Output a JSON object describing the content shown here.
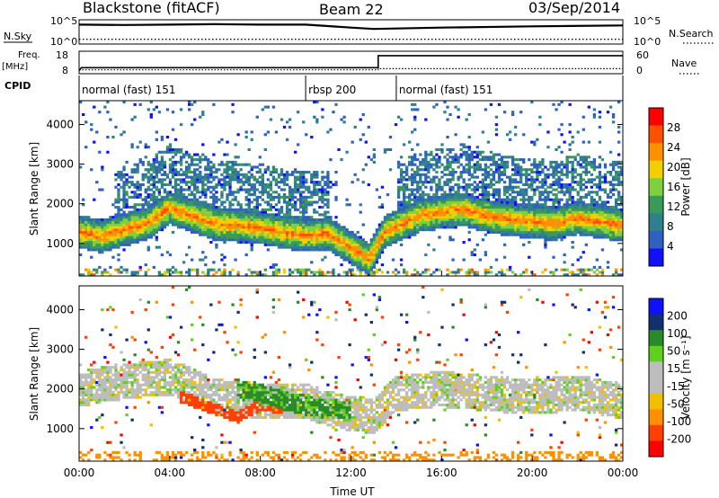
{
  "header": {
    "station": "Blackstone (fitACF)",
    "beam": "Beam 22",
    "date": "03/Sep/2014"
  },
  "side_labels": {
    "nsky": "N.Sky",
    "nsearch": "N.Search",
    "freq_line1": "Freq.",
    "freq_line2": "[MHz]",
    "nave": "Nave",
    "cpid": "CPID"
  },
  "noise_axis": {
    "top": "10^5",
    "bottom": "10^0"
  },
  "freq_axis": {
    "left_ticks": [
      "18",
      "8"
    ],
    "right_ticks": [
      "60",
      "0"
    ]
  },
  "cpid_segments": [
    {
      "label": "normal (fast) 151",
      "start_h": 0,
      "end_h": 10
    },
    {
      "label": "rbsp 200",
      "start_h": 10,
      "end_h": 14
    },
    {
      "label": "normal (fast) 151",
      "start_h": 14,
      "end_h": 24
    }
  ],
  "colors": {
    "power_scale": [
      "#1010ff",
      "#3060c0",
      "#2f7f8f",
      "#3a9a5a",
      "#7fd040",
      "#f0d000",
      "#ff9000",
      "#ff5000",
      "#ff0000"
    ],
    "velocity_scale": [
      "#ff0000",
      "#ff4000",
      "#ff9000",
      "#f0c000",
      "#bdbdbd",
      "#bdbdbd",
      "#60d020",
      "#2a8a2a",
      "#103070",
      "#1010ff"
    ],
    "ground_scatter": "#bdbdbd"
  },
  "chart_data": [
    {
      "type": "line",
      "title": "Blackstone (fitACF)",
      "panel": "noise",
      "series": [
        {
          "name": "N.Sky",
          "x": [
            0,
            2,
            4,
            6,
            8,
            10,
            12,
            13,
            16,
            20,
            24
          ],
          "y_log10": [
            4.3,
            4.2,
            4.3,
            4.4,
            4.3,
            4.3,
            3.6,
            3.3,
            3.6,
            3.9,
            4.1
          ]
        },
        {
          "name": "N.Search",
          "x": [
            0,
            4,
            8,
            12,
            16,
            20,
            24
          ],
          "y_log10": [
            0.9,
            0.9,
            0.9,
            0.9,
            0.9,
            0.9,
            0.9
          ]
        }
      ],
      "ylabel_left": "N.Sky",
      "ylabel_right": "N.Search",
      "scale": "log",
      "ylim": [
        0,
        5
      ],
      "xlim": [
        0,
        24
      ]
    },
    {
      "type": "line",
      "panel": "frequency",
      "series": [
        {
          "name": "Freq. [MHz]",
          "x": [
            0,
            0.1,
            13.2,
            13.2,
            24
          ],
          "y": [
            9,
            10.5,
            10.5,
            16.3,
            16.3
          ]
        },
        {
          "name": "Nave",
          "x": [
            0,
            13.2,
            13.2,
            24
          ],
          "y": [
            8.5,
            8.5,
            12,
            12
          ]
        }
      ],
      "ylim_left": [
        8,
        18
      ],
      "ylim_right": [
        0,
        60
      ],
      "xlim": [
        0,
        24
      ]
    },
    {
      "type": "heatmap",
      "panel": "power",
      "xlabel": "",
      "ylabel": "Slant Range [km]",
      "xlim": [
        0,
        24
      ],
      "ylim": [
        180,
        4600
      ],
      "yticks": [
        1000,
        2000,
        3000,
        4000
      ],
      "colorbar": {
        "label": "Power [dB]",
        "ticks": [
          4,
          8,
          12,
          16,
          20,
          24,
          28
        ],
        "range": [
          0,
          32
        ]
      },
      "bands": [
        {
          "x": [
            0,
            1,
            2,
            3,
            4,
            5,
            6,
            7,
            8,
            9,
            10,
            11,
            12,
            12.8,
            13.5,
            15,
            16,
            17,
            18,
            19,
            20,
            21,
            22,
            23,
            24
          ],
          "y": [
            1300,
            1180,
            1350,
            1500,
            1900,
            1700,
            1500,
            1450,
            1400,
            1300,
            1200,
            1250,
            900,
            600,
            1300,
            1700,
            1800,
            1850,
            1700,
            1600,
            1550,
            1500,
            1650,
            1550,
            1450
          ],
          "width_km": 420,
          "peak_db": 28
        }
      ]
    },
    {
      "type": "heatmap",
      "panel": "velocity",
      "xlabel": "Time UT",
      "ylabel": "Slant Range [km]",
      "xlim": [
        0,
        24
      ],
      "ylim": [
        180,
        4600
      ],
      "xticks": [
        "00:00",
        "04:00",
        "08:00",
        "12:00",
        "16:00",
        "20:00",
        "00:00"
      ],
      "yticks": [
        1000,
        2000,
        3000,
        4000
      ],
      "colorbar": {
        "label": "Velocity [m s⁻¹]",
        "ticks": [
          200,
          100,
          50,
          15,
          -15,
          -50,
          -100,
          -200
        ],
        "range": [
          -250,
          250
        ]
      },
      "bands": [
        {
          "x": [
            0,
            2,
            4,
            5,
            6,
            8,
            10,
            11,
            12,
            13,
            14,
            16,
            18,
            20,
            22,
            24
          ],
          "y": [
            2000,
            2200,
            2300,
            2100,
            1800,
            1700,
            1700,
            1500,
            1400,
            1300,
            1900,
            2000,
            1900,
            1800,
            1900,
            1700
          ],
          "width_km": 900,
          "dominant_velocity": 0
        },
        {
          "x": [
            4.5,
            6,
            7,
            8,
            9
          ],
          "y": [
            1800,
            1500,
            1300,
            1600,
            1500
          ],
          "width_km": 300,
          "dominant_velocity": -150
        },
        {
          "x": [
            7,
            8,
            9,
            10,
            11,
            12
          ],
          "y": [
            2000,
            1900,
            1700,
            1600,
            1500,
            1450
          ],
          "width_km": 500,
          "dominant_velocity": 60
        }
      ]
    }
  ]
}
